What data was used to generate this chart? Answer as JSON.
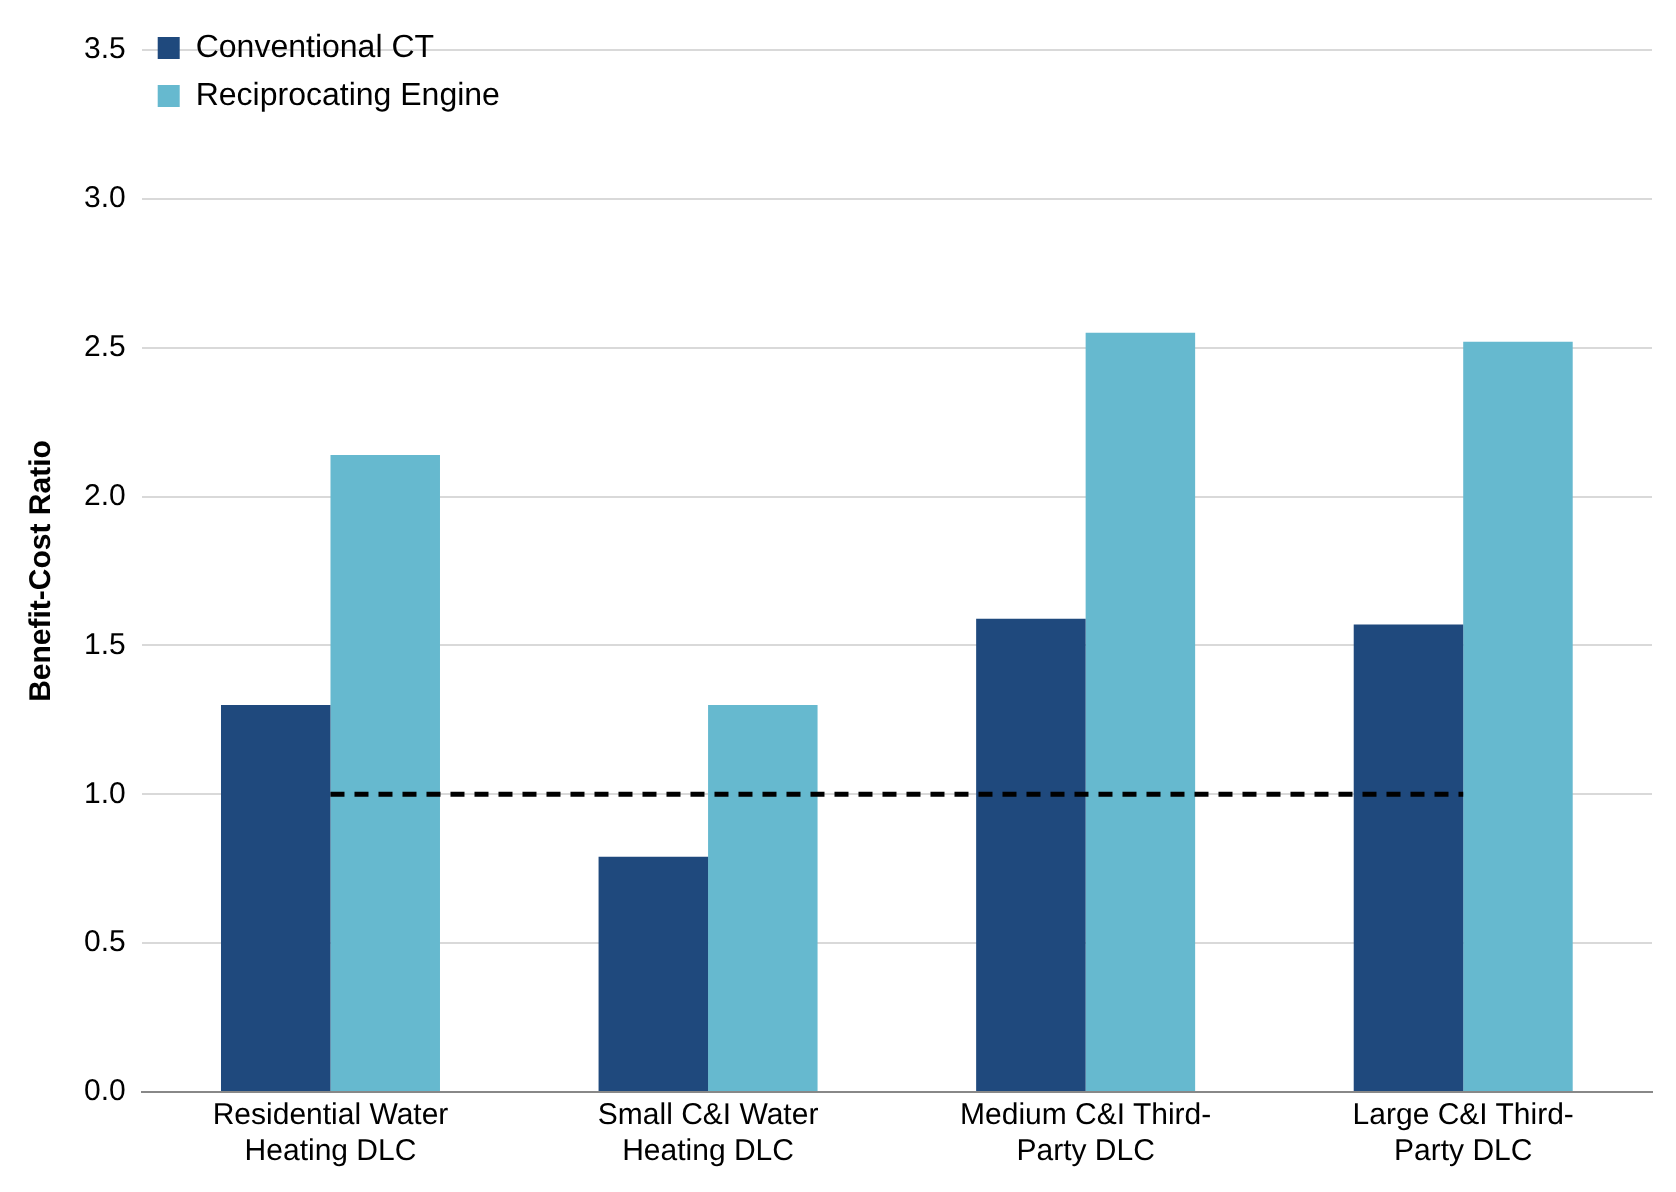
{
  "chart_data": {
    "type": "bar",
    "ylabel": "Benefit-Cost Ratio",
    "categories": [
      "Residential Water Heating DLC",
      "Small C&I Water Heating DLC",
      "Medium C&I Third-Party DLC",
      "Large C&I Third-Party DLC"
    ],
    "series": [
      {
        "name": "Conventional CT",
        "color": "#1f497d",
        "values": [
          1.3,
          0.79,
          1.59,
          1.57
        ]
      },
      {
        "name": "Reciprocating Engine",
        "color": "#66b9cf",
        "values": [
          2.14,
          1.3,
          2.55,
          2.52
        ]
      }
    ],
    "ylim": [
      0,
      3.5
    ],
    "yticks": [
      {
        "value": 0,
        "label": "0.0"
      },
      {
        "value": 0.5,
        "label": "0.5"
      },
      {
        "value": 1,
        "label": "1.0"
      },
      {
        "value": 1.5,
        "label": "1.5"
      },
      {
        "value": 2,
        "label": "2.0"
      },
      {
        "value": 2.5,
        "label": "2.5"
      },
      {
        "value": 3,
        "label": "3.0"
      },
      {
        "value": 3.5,
        "label": "3.5"
      }
    ],
    "grid": "y",
    "legend": "top left",
    "ref_lines": [
      {
        "axis": "y",
        "value": 1,
        "color": "#000000",
        "line_style": "dashed"
      }
    ]
  }
}
